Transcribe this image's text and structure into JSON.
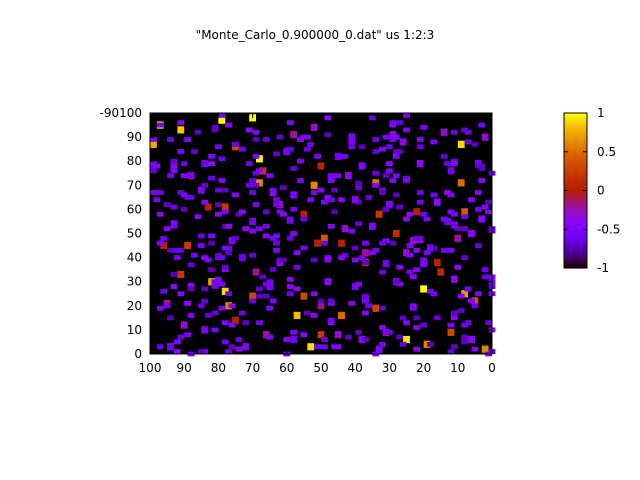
{
  "chart_data": {
    "type": "heatmap",
    "title": "\"Monte_Carlo_0.900000_0.dat\" us 1:2:3",
    "xlabel": "",
    "ylabel": "",
    "xlim": [
      100,
      0
    ],
    "ylim": [
      0,
      100
    ],
    "x_reversed": true,
    "x_ticks": [
      100,
      90,
      80,
      70,
      60,
      50,
      40,
      30,
      20,
      10,
      0
    ],
    "y_ticks": [
      0,
      10,
      20,
      30,
      40,
      50,
      60,
      70,
      80,
      90
    ],
    "y_top_overlap_label": "-90100",
    "grid": false,
    "background_value": -1,
    "colorbar": {
      "range": [
        -1,
        1
      ],
      "ticks": [
        "1",
        "0.5",
        "0",
        "-0.5",
        "-1"
      ],
      "palette": "black-blue-violet-red-orange-yellow"
    },
    "grid_size": [
      100,
      100
    ],
    "estimated_cells": {
      "columns": [
        "x",
        "y",
        "value"
      ],
      "rows": [
        [
          97,
          95,
          0.9
        ],
        [
          91,
          93,
          0.85
        ],
        [
          79,
          97,
          1.0
        ],
        [
          70,
          98,
          1.0
        ],
        [
          99,
          87,
          0.75
        ],
        [
          75,
          86,
          0.3
        ],
        [
          68,
          81,
          1.0
        ],
        [
          67,
          76,
          0.2
        ],
        [
          68,
          71,
          0.6
        ],
        [
          52,
          70,
          0.6
        ],
        [
          34,
          71,
          0.55
        ],
        [
          9,
          71,
          0.5
        ],
        [
          9,
          87,
          0.9
        ],
        [
          14,
          92,
          -0.3
        ],
        [
          26,
          88,
          -0.4
        ],
        [
          29,
          91,
          -0.4
        ],
        [
          50,
          78,
          0.0
        ],
        [
          52,
          94,
          -0.3
        ],
        [
          58,
          91,
          -0.2
        ],
        [
          41,
          90,
          -0.5
        ],
        [
          83,
          61,
          0.0
        ],
        [
          78,
          61,
          0.2
        ],
        [
          62,
          62,
          -0.3
        ],
        [
          55,
          58,
          0.0
        ],
        [
          33,
          58,
          0.2
        ],
        [
          22,
          59,
          0.0
        ],
        [
          8,
          59,
          0.4
        ],
        [
          96,
          45,
          0.0
        ],
        [
          89,
          45,
          0.2
        ],
        [
          51,
          46,
          0.0
        ],
        [
          49,
          48,
          0.4
        ],
        [
          44,
          46,
          0.0
        ],
        [
          28,
          50,
          0.1
        ],
        [
          23,
          47,
          -0.3
        ],
        [
          10,
          48,
          -0.2
        ],
        [
          6,
          50,
          -0.4
        ],
        [
          91,
          33,
          0.2
        ],
        [
          82,
          30,
          0.7
        ],
        [
          78,
          26,
          0.9
        ],
        [
          77,
          20,
          0.6
        ],
        [
          70,
          24,
          0.3
        ],
        [
          55,
          24,
          0.3
        ],
        [
          50,
          20,
          -0.2
        ],
        [
          57,
          16,
          0.8
        ],
        [
          44,
          16,
          0.5
        ],
        [
          34,
          19,
          0.3
        ],
        [
          20,
          27,
          1.0
        ],
        [
          8,
          25,
          0.7
        ],
        [
          5,
          22,
          0.4
        ],
        [
          25,
          6,
          0.95
        ],
        [
          19,
          4,
          0.6
        ],
        [
          12,
          9,
          0.3
        ],
        [
          53,
          3,
          0.9
        ],
        [
          50,
          8,
          0.2
        ],
        [
          2,
          2,
          0.6
        ],
        [
          95,
          21,
          -0.2
        ],
        [
          90,
          12,
          -0.3
        ],
        [
          84,
          10,
          -0.4
        ],
        [
          75,
          14,
          0.0
        ],
        [
          66,
          8,
          -0.2
        ],
        [
          45,
          8,
          -0.3
        ],
        [
          38,
          6,
          -0.4
        ],
        [
          31,
          9,
          -0.1
        ],
        [
          15,
          34,
          0.1
        ],
        [
          16,
          38,
          0.0
        ],
        [
          43,
          52,
          -0.3
        ],
        [
          69,
          34,
          -0.2
        ],
        [
          62,
          38,
          -0.4
        ],
        [
          37,
          42,
          -0.2
        ],
        [
          37,
          38,
          0.2
        ],
        [
          25,
          42,
          -0.3
        ],
        [
          18,
          44,
          -0.5
        ],
        [
          73,
          40,
          -0.6
        ],
        [
          76,
          47,
          -0.5
        ],
        [
          88,
          74,
          -0.3
        ],
        [
          84,
          79,
          -0.6
        ],
        [
          60,
          84,
          -0.5
        ],
        [
          45,
          82,
          -0.6
        ],
        [
          42,
          74,
          -0.4
        ],
        [
          38,
          78,
          -0.5
        ],
        [
          21,
          79,
          -0.4
        ],
        [
          12,
          76,
          -0.6
        ],
        [
          4,
          79,
          -0.5
        ],
        [
          2,
          90,
          -0.3
        ],
        [
          85,
          68,
          -0.5
        ],
        [
          64,
          67,
          -0.4
        ],
        [
          58,
          66,
          -0.5
        ],
        [
          40,
          64,
          -0.3
        ],
        [
          30,
          62,
          -0.5
        ],
        [
          16,
          63,
          -0.4
        ],
        [
          93,
          54,
          -0.5
        ],
        [
          70,
          55,
          -0.6
        ],
        [
          35,
          53,
          -0.5
        ],
        [
          13,
          55,
          -0.6
        ],
        [
          3,
          56,
          -0.5
        ],
        [
          88,
          28,
          -0.4
        ],
        [
          65,
          28,
          -0.5
        ],
        [
          48,
          30,
          -0.4
        ],
        [
          40,
          28,
          -0.6
        ],
        [
          28,
          30,
          -0.5
        ],
        [
          11,
          31,
          -0.4
        ],
        [
          94,
          3,
          -0.5
        ],
        [
          72,
          3,
          -0.5
        ],
        [
          58,
          6,
          -0.6
        ],
        [
          33,
          2,
          -0.5
        ],
        [
          6,
          6,
          -0.4
        ]
      ]
    }
  }
}
